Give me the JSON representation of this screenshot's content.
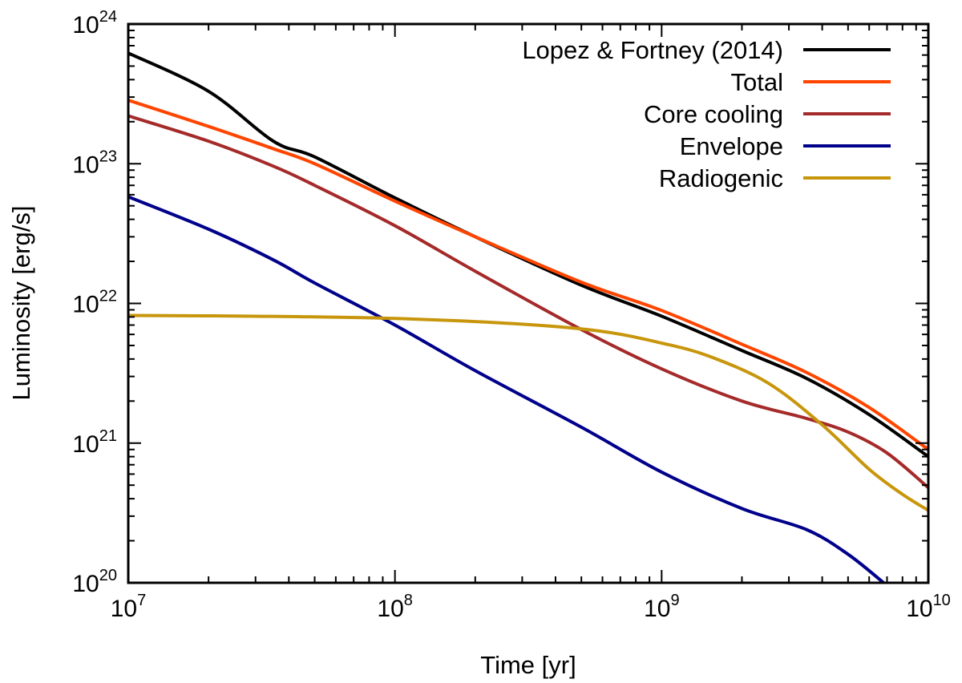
{
  "chart_data": {
    "type": "line",
    "title": "",
    "xlabel": "Time [yr]",
    "ylabel": "Luminosity [erg/s]",
    "xscale": "log",
    "yscale": "log",
    "xlim": [
      10000000,
      10000000000
    ],
    "ylim": [
      1e+20,
      1e+24
    ],
    "grid": false,
    "legend_position": "top-right",
    "x_ticks": [
      {
        "base": "10",
        "exp": "7",
        "value": 10000000
      },
      {
        "base": "10",
        "exp": "8",
        "value": 100000000
      },
      {
        "base": "10",
        "exp": "9",
        "value": 1000000000
      },
      {
        "base": "10",
        "exp": "10",
        "value": 10000000000
      }
    ],
    "y_ticks": [
      {
        "base": "10",
        "exp": "20",
        "value": 1e+20
      },
      {
        "base": "10",
        "exp": "21",
        "value": 1e+21
      },
      {
        "base": "10",
        "exp": "22",
        "value": 1e+22
      },
      {
        "base": "10",
        "exp": "23",
        "value": 1e+23
      },
      {
        "base": "10",
        "exp": "24",
        "value": 1e+24
      }
    ],
    "series": [
      {
        "name": "Lopez & Fortney (2014)",
        "color": "#000000",
        "x": [
          10000000.0,
          20000000.0,
          35000000.0,
          50000000.0,
          100000000.0,
          200000000.0,
          500000000.0,
          1000000000.0,
          2000000000.0,
          3500000000.0,
          6000000000.0,
          10000000000.0
        ],
        "y": [
          6.2e+23,
          3.3e+23,
          1.45e+23,
          1.12e+23,
          5.7e+22,
          3e+22,
          1.35e+22,
          8.1e+21,
          4.6e+21,
          2.9e+21,
          1.6e+21,
          8e+20
        ]
      },
      {
        "name": "Total",
        "color": "#ff4500",
        "x": [
          10000000.0,
          20000000.0,
          35000000.0,
          50000000.0,
          100000000.0,
          200000000.0,
          500000000.0,
          1000000000.0,
          2000000000.0,
          3500000000.0,
          6000000000.0,
          10000000000.0
        ],
        "y": [
          2.85e+23,
          1.85e+23,
          1.28e+23,
          1e+23,
          5.4e+22,
          3e+22,
          1.42e+22,
          8.9e+21,
          5.1e+21,
          3.2e+21,
          1.8e+21,
          9e+20
        ]
      },
      {
        "name": "Core cooling",
        "color": "#a52a2a",
        "x": [
          10000000.0,
          20000000.0,
          35000000.0,
          50000000.0,
          100000000.0,
          200000000.0,
          500000000.0,
          1000000000.0,
          2000000000.0,
          3500000000.0,
          5000000000.0,
          7000000000.0,
          10000000000.0
        ],
        "y": [
          2.2e+23,
          1.45e+23,
          9.6e+22,
          7e+22,
          3.6e+22,
          1.7e+22,
          6.5e+21,
          3.4e+21,
          2e+21,
          1.5e+21,
          1.2e+21,
          8.5e+20,
          4.8e+20
        ]
      },
      {
        "name": "Envelope",
        "color": "#00008b",
        "x": [
          10000000.0,
          20000000.0,
          35000000.0,
          50000000.0,
          100000000.0,
          200000000.0,
          500000000.0,
          1000000000.0,
          2000000000.0,
          3500000000.0,
          5000000000.0,
          6800000000.0
        ],
        "y": [
          5.8e+22,
          3.4e+22,
          2.05e+22,
          1.4e+22,
          7e+21,
          3.3e+21,
          1.3e+21,
          6.2e+20,
          3.4e+20,
          2.4e+20,
          1.6e+20,
          1e+20
        ]
      },
      {
        "name": "Radiogenic",
        "color": "#c8960c",
        "x": [
          10000000.0,
          30000000.0,
          100000000.0,
          300000000.0,
          600000000.0,
          1000000000.0,
          1500000000.0,
          2500000000.0,
          4000000000.0,
          6000000000.0,
          8000000000.0,
          10000000000.0
        ],
        "y": [
          8.2e+21,
          8.1e+21,
          7.8e+21,
          7.1e+21,
          6.3e+21,
          5.2e+21,
          4.2e+21,
          2.7e+21,
          1.35e+21,
          6.5e+20,
          4.3e+20,
          3.3e+20
        ]
      }
    ]
  }
}
